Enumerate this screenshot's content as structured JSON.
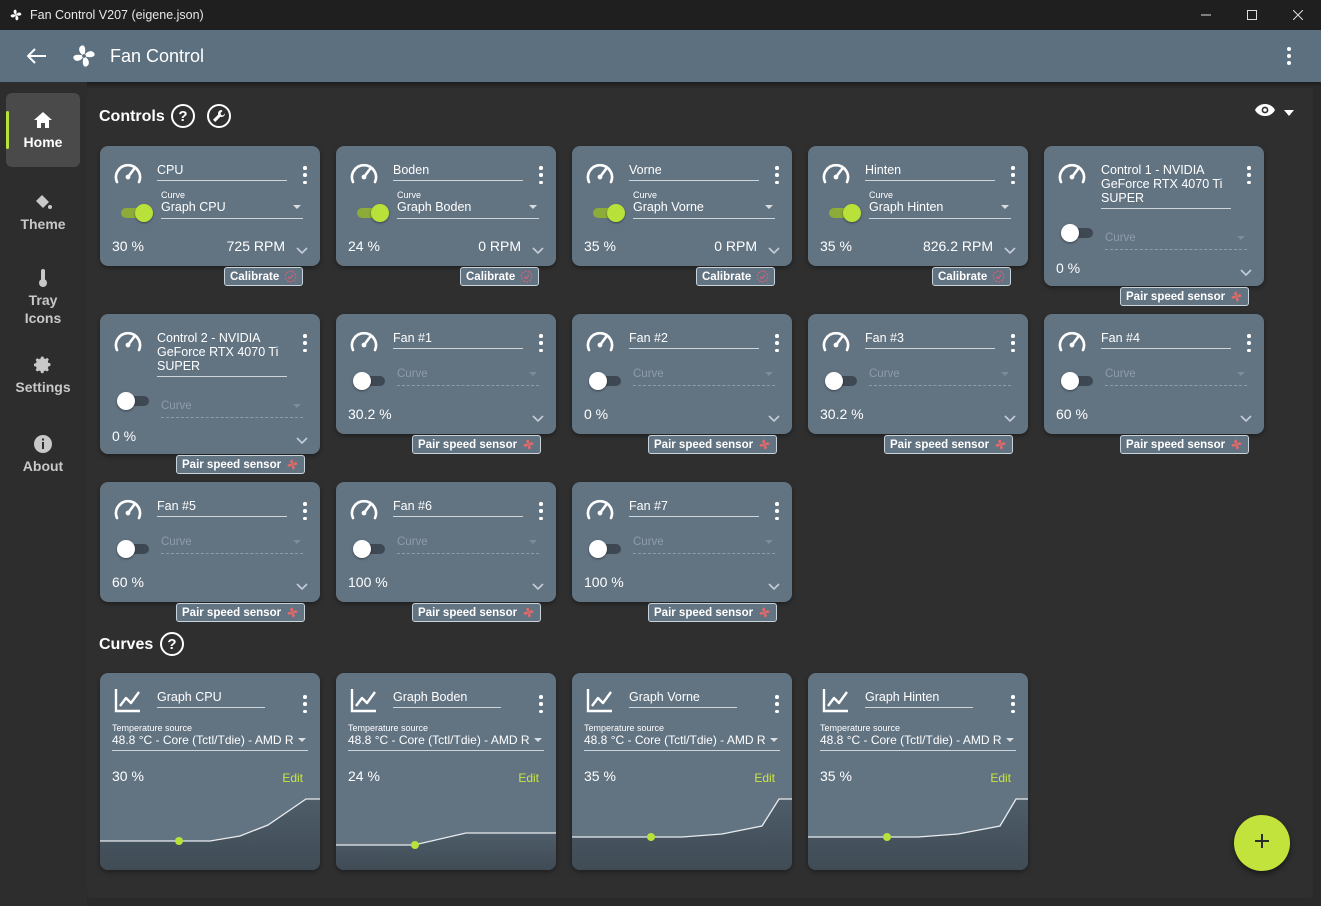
{
  "window": {
    "title": "Fan Control V207 (eigene.json)"
  },
  "appbar": {
    "title": "Fan Control"
  },
  "sidebar": {
    "items": [
      {
        "label": "Home",
        "icon": "home-icon"
      },
      {
        "label": "Theme",
        "icon": "paint-bucket-icon"
      },
      {
        "label": "Tray Icons",
        "icon": "thermometer-icon"
      },
      {
        "label": "Settings",
        "icon": "gear-icon"
      },
      {
        "label": "About",
        "icon": "info-icon"
      }
    ]
  },
  "sections": {
    "controls": "Controls",
    "curves": "Curves"
  },
  "labels": {
    "curve": "Curve",
    "temperature_source": "Temperature source",
    "edit": "Edit",
    "calibrate": "Calibrate",
    "pair_speed_sensor": "Pair speed sensor"
  },
  "controls": [
    {
      "name": "CPU",
      "enabled": true,
      "curve": "Graph CPU",
      "percent": "30 %",
      "rpm": "725 RPM",
      "chip": "Calibrate"
    },
    {
      "name": "Boden",
      "enabled": true,
      "curve": "Graph Boden",
      "percent": "24 %",
      "rpm": "0 RPM",
      "chip": "Calibrate"
    },
    {
      "name": "Vorne",
      "enabled": true,
      "curve": "Graph Vorne",
      "percent": "35 %",
      "rpm": "0 RPM",
      "chip": "Calibrate"
    },
    {
      "name": "Hinten",
      "enabled": true,
      "curve": "Graph Hinten",
      "percent": "35 %",
      "rpm": "826.2 RPM",
      "chip": "Calibrate"
    },
    {
      "name": "Control 1 - NVIDIA GeForce RTX 4070 Ti SUPER",
      "enabled": false,
      "curve": "Curve",
      "percent": "0 %",
      "rpm": "",
      "chip": "Pair speed sensor"
    },
    {
      "name": "Control 2 - NVIDIA GeForce RTX 4070 Ti SUPER",
      "enabled": false,
      "curve": "Curve",
      "percent": "0 %",
      "rpm": "",
      "chip": "Pair speed sensor"
    },
    {
      "name": "Fan #1",
      "enabled": false,
      "curve": "Curve",
      "percent": "30.2 %",
      "rpm": "",
      "chip": "Pair speed sensor"
    },
    {
      "name": "Fan #2",
      "enabled": false,
      "curve": "Curve",
      "percent": "0 %",
      "rpm": "",
      "chip": "Pair speed sensor"
    },
    {
      "name": "Fan #3",
      "enabled": false,
      "curve": "Curve",
      "percent": "30.2 %",
      "rpm": "",
      "chip": "Pair speed sensor"
    },
    {
      "name": "Fan #4",
      "enabled": false,
      "curve": "Curve",
      "percent": "60 %",
      "rpm": "",
      "chip": "Pair speed sensor"
    },
    {
      "name": "Fan #5",
      "enabled": false,
      "curve": "Curve",
      "percent": "60 %",
      "rpm": "",
      "chip": "Pair speed sensor"
    },
    {
      "name": "Fan #6",
      "enabled": false,
      "curve": "Curve",
      "percent": "100 %",
      "rpm": "",
      "chip": "Pair speed sensor"
    },
    {
      "name": "Fan #7",
      "enabled": false,
      "curve": "Curve",
      "percent": "100 %",
      "rpm": "",
      "chip": "Pair speed sensor"
    }
  ],
  "curves": [
    {
      "name": "Graph CPU",
      "source": "48.8 °C - Core (Tctl/Tdie) - AMD R",
      "percent": "30 %"
    },
    {
      "name": "Graph Boden",
      "source": "48.8 °C - Core (Tctl/Tdie) - AMD R",
      "percent": "24 %"
    },
    {
      "name": "Graph Vorne",
      "source": "48.8 °C - Core (Tctl/Tdie) - AMD R",
      "percent": "35 %"
    },
    {
      "name": "Graph Hinten",
      "source": "48.8 °C - Core (Tctl/Tdie) - AMD R",
      "percent": "35 %"
    }
  ],
  "colors": {
    "accent": "#b8e23a",
    "card": "#627382",
    "appbar": "#5d7080",
    "background": "#2f2f2f",
    "fan_icon": "#e26a6a"
  }
}
